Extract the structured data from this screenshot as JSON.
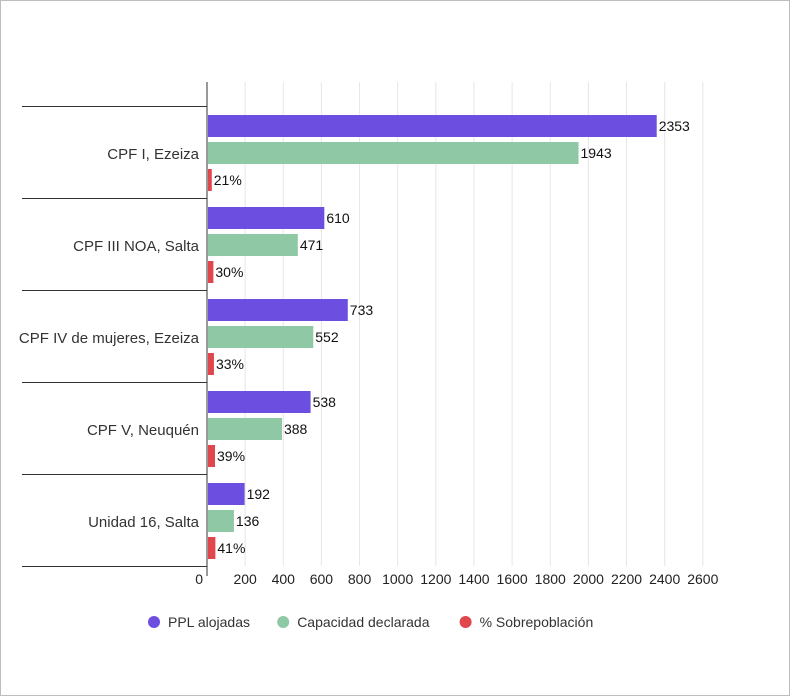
{
  "chart_data": {
    "type": "bar",
    "orientation": "horizontal",
    "categories": [
      "CPF I, Ezeiza",
      "CPF III NOA, Salta",
      "CPF IV de mujeres, Ezeiza",
      "CPF V, Neuquén",
      "Unidad 16, Salta"
    ],
    "series": [
      {
        "name": "PPL alojadas",
        "color": "#6c4fe0",
        "values": [
          2353,
          610,
          733,
          538,
          192
        ],
        "labels": [
          "2353",
          "610",
          "733",
          "538",
          "192"
        ]
      },
      {
        "name": "Capacidad declarada",
        "color": "#8fc8a5",
        "values": [
          1943,
          471,
          552,
          388,
          136
        ],
        "labels": [
          "1943",
          "471",
          "552",
          "388",
          "136"
        ]
      },
      {
        "name": "% Sobrepoblación",
        "color": "#e0474c",
        "values": [
          21,
          30,
          33,
          39,
          41
        ],
        "labels": [
          "21%",
          "30%",
          "33%",
          "39%",
          "41%"
        ]
      }
    ],
    "xlim": [
      0,
      2600
    ],
    "xticks": [
      0,
      200,
      400,
      600,
      800,
      1000,
      1200,
      1400,
      1600,
      1800,
      2000,
      2200,
      2400,
      2600
    ],
    "xtick_labels": [
      "0",
      "200",
      "400",
      "600",
      "800",
      "1000",
      "1200",
      "1400",
      "1600",
      "1800",
      "2000",
      "2200",
      "2400",
      "2600"
    ],
    "grid": true,
    "legend_position": "bottom",
    "title": "",
    "xlabel": "",
    "ylabel": ""
  }
}
